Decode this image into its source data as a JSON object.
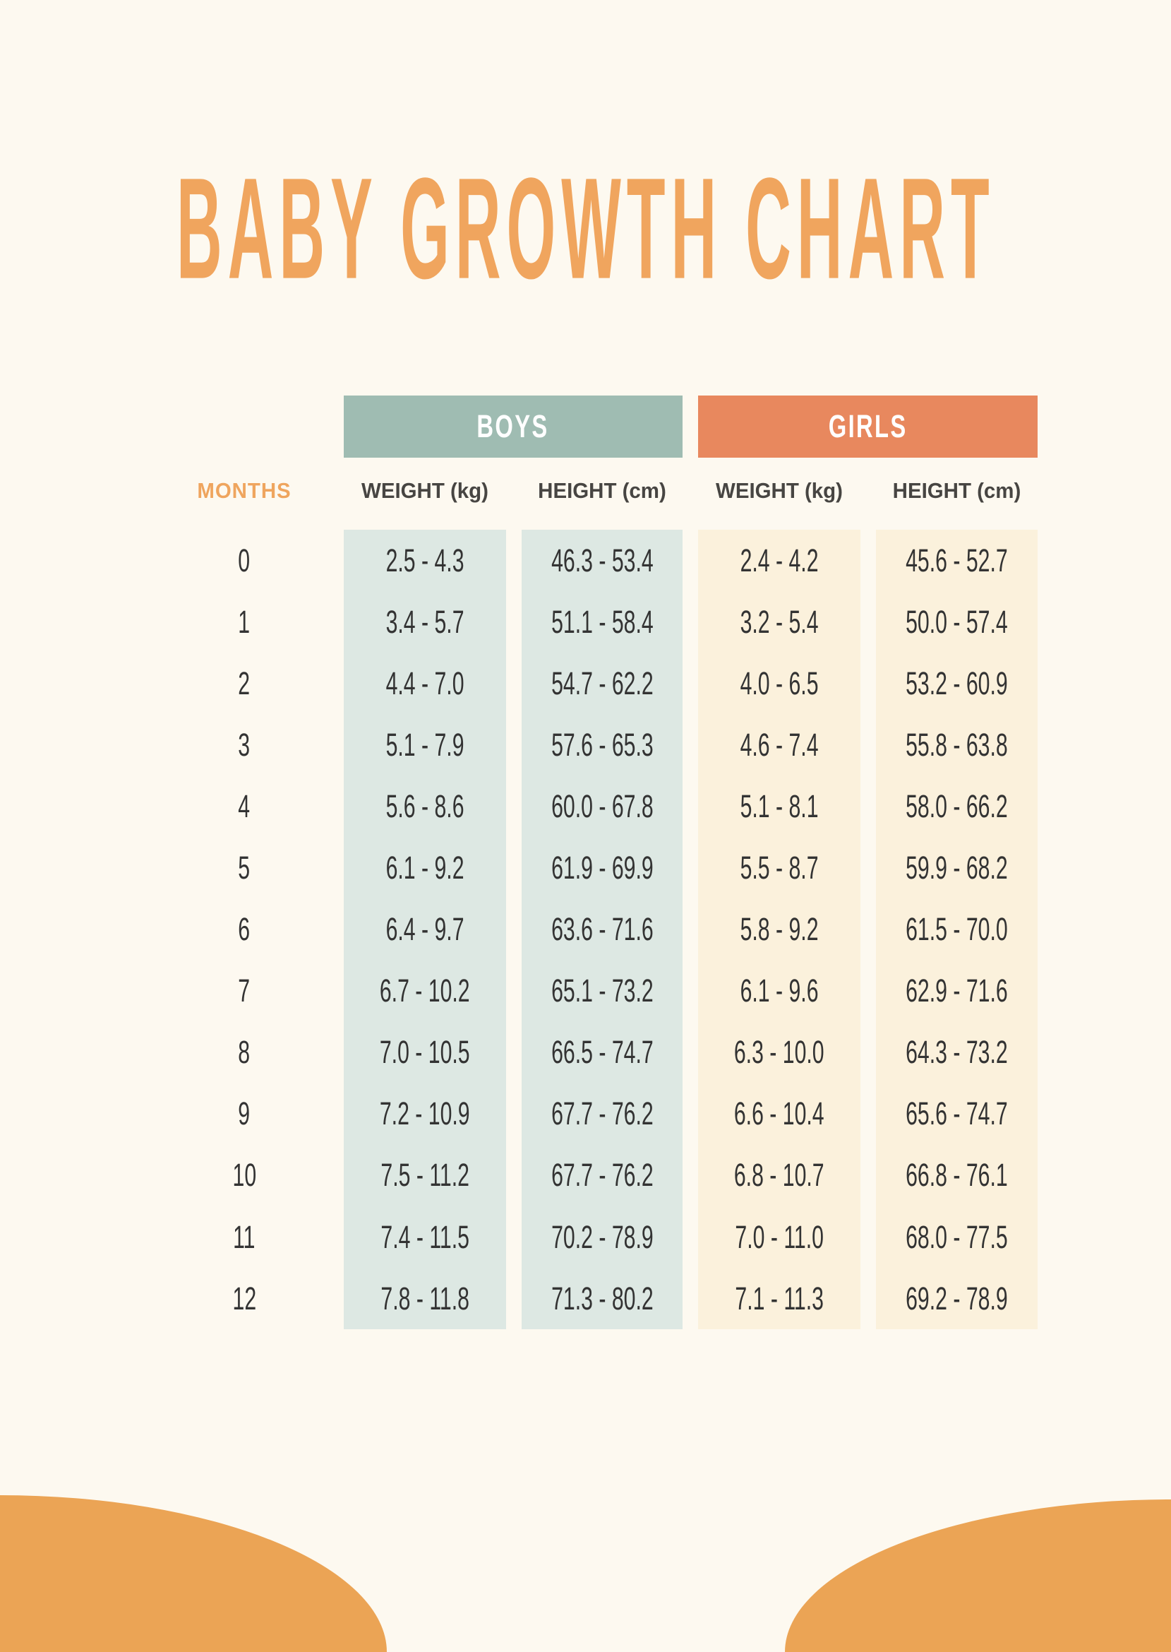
{
  "title": "BABY GROWTH CHART",
  "colors": {
    "page_bg": "#FDF9F0",
    "title_orange": "#F0A55E",
    "months_label_orange": "#EFA55E",
    "boys_header_bg": "#9FBCB2",
    "girls_header_bg": "#E8885E",
    "boys_column_bg": "#DDE8E3",
    "girls_column_bg": "#FBF1DC",
    "group_header_text": "#FFFFFF",
    "column_header_text": "#474542",
    "data_text": "#333333",
    "blob_orange": "#EBA455"
  },
  "table": {
    "months_label": "MONTHS",
    "groups": [
      {
        "label": "BOYS"
      },
      {
        "label": "GIRLS"
      }
    ],
    "column_headers": {
      "boys_weight": "WEIGHT (kg)",
      "boys_height": "HEIGHT (cm)",
      "girls_weight": "WEIGHT (kg)",
      "girls_height": "HEIGHT (cm)"
    },
    "rows": [
      {
        "month": "0",
        "boys_weight": "2.5 - 4.3",
        "boys_height": "46.3 - 53.4",
        "girls_weight": "2.4 - 4.2",
        "girls_height": "45.6 - 52.7"
      },
      {
        "month": "1",
        "boys_weight": "3.4 - 5.7",
        "boys_height": "51.1 - 58.4",
        "girls_weight": "3.2 - 5.4",
        "girls_height": "50.0 - 57.4"
      },
      {
        "month": "2",
        "boys_weight": "4.4 - 7.0",
        "boys_height": "54.7 - 62.2",
        "girls_weight": "4.0 - 6.5",
        "girls_height": "53.2 - 60.9"
      },
      {
        "month": "3",
        "boys_weight": "5.1 - 7.9",
        "boys_height": "57.6 - 65.3",
        "girls_weight": "4.6 - 7.4",
        "girls_height": "55.8 - 63.8"
      },
      {
        "month": "4",
        "boys_weight": "5.6 - 8.6",
        "boys_height": "60.0 - 67.8",
        "girls_weight": "5.1 - 8.1",
        "girls_height": "58.0 - 66.2"
      },
      {
        "month": "5",
        "boys_weight": "6.1 - 9.2",
        "boys_height": "61.9 - 69.9",
        "girls_weight": "5.5 - 8.7",
        "girls_height": "59.9 - 68.2"
      },
      {
        "month": "6",
        "boys_weight": "6.4 - 9.7",
        "boys_height": "63.6 - 71.6",
        "girls_weight": "5.8 - 9.2",
        "girls_height": "61.5 - 70.0"
      },
      {
        "month": "7",
        "boys_weight": "6.7 - 10.2",
        "boys_height": "65.1 - 73.2",
        "girls_weight": "6.1 - 9.6",
        "girls_height": "62.9 - 71.6"
      },
      {
        "month": "8",
        "boys_weight": "7.0 - 10.5",
        "boys_height": "66.5 - 74.7",
        "girls_weight": "6.3 - 10.0",
        "girls_height": "64.3 - 73.2"
      },
      {
        "month": "9",
        "boys_weight": "7.2 - 10.9",
        "boys_height": "67.7 - 76.2",
        "girls_weight": "6.6 - 10.4",
        "girls_height": "65.6 - 74.7"
      },
      {
        "month": "10",
        "boys_weight": "7.5 - 11.2",
        "boys_height": "67.7 - 76.2",
        "girls_weight": "6.8 - 10.7",
        "girls_height": "66.8 - 76.1"
      },
      {
        "month": "11",
        "boys_weight": "7.4 - 11.5",
        "boys_height": "70.2 - 78.9",
        "girls_weight": "7.0 - 11.0",
        "girls_height": "68.0 - 77.5"
      },
      {
        "month": "12",
        "boys_weight": "7.8 - 11.8",
        "boys_height": "71.3 - 80.2",
        "girls_weight": "7.1 - 11.3",
        "girls_height": "69.2 - 78.9"
      }
    ]
  }
}
